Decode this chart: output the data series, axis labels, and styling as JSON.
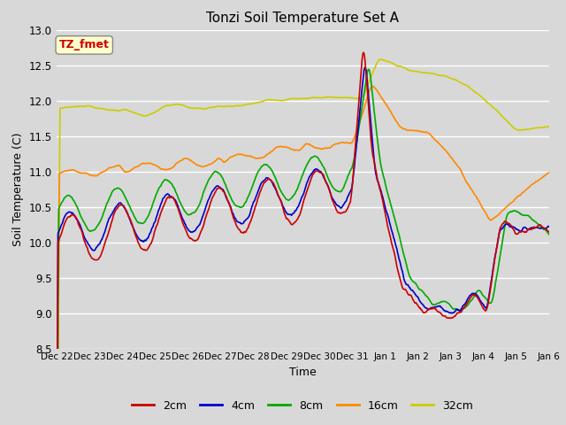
{
  "title": "Tonzi Soil Temperature Set A",
  "xlabel": "Time",
  "ylabel": "Soil Temperature (C)",
  "ylim": [
    8.5,
    13.0
  ],
  "annotation": "TZ_fmet",
  "annotation_color": "#cc0000",
  "annotation_bg": "#ffffcc",
  "bg_color": "#d8d8d8",
  "series_colors": [
    "#cc0000",
    "#0000cc",
    "#00aa00",
    "#ff8800",
    "#cccc00"
  ],
  "series_labels": [
    "2cm",
    "4cm",
    "8cm",
    "16cm",
    "32cm"
  ],
  "x_labels": [
    "Dec 22",
    "Dec 23",
    "Dec 24",
    "Dec 25",
    "Dec 26",
    "Dec 27",
    "Dec 28",
    "Dec 29",
    "Dec 30",
    "Dec 31",
    "Jan 1",
    "Jan 2",
    "Jan 3",
    "Jan 4",
    "Jan 5",
    "Jan 6"
  ],
  "line_width": 1.2
}
